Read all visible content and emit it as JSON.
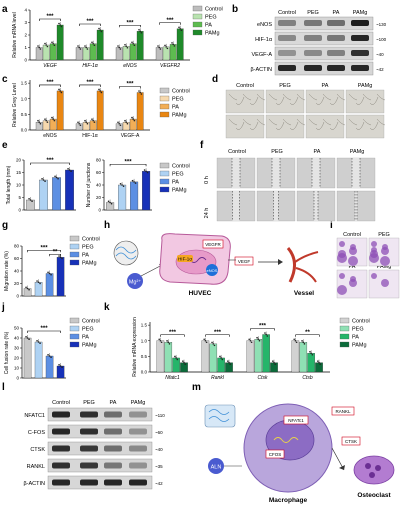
{
  "colors": {
    "control": "#c8c8c8",
    "peg": "#aed2f3",
    "pa": "#5c8fe3",
    "pamg": "#1731b8",
    "a_control": "#bdbdbd",
    "a_peg": "#b9e3b0",
    "a_pa": "#5dbc4f",
    "a_pamg": "#1f8a2a",
    "c_control": "#c8c8c8",
    "c_peg": "#f6d9ae",
    "c_pa": "#f2ae56",
    "c_pamg": "#e98612",
    "k_control": "#d2d2d2",
    "k_peg": "#8fe0b4",
    "k_pa": "#25b56a",
    "k_pamg": "#0b6b3a"
  },
  "legend_groups": [
    "Control",
    "PEG",
    "PA",
    "PAMg"
  ],
  "panels": {
    "a": {
      "letter": "a",
      "ylabel": "Relative mRNA level",
      "yticks": [
        "0",
        "1",
        "2",
        "3",
        "4"
      ],
      "sig": "***",
      "chart_data": {
        "type": "bar",
        "categories": [
          "VEGF",
          "HIF-1α",
          "eNOS",
          "VEGFR2"
        ],
        "ylim": [
          0,
          4
        ],
        "series": [
          {
            "name": "Control",
            "values": [
              1.0,
              1.0,
              1.0,
              1.0
            ]
          },
          {
            "name": "PEG",
            "values": [
              1.2,
              1.0,
              1.1,
              1.05
            ]
          },
          {
            "name": "PA",
            "values": [
              1.3,
              1.3,
              1.3,
              1.25
            ]
          },
          {
            "name": "PAMg",
            "values": [
              2.8,
              2.4,
              2.3,
              2.5
            ]
          }
        ]
      }
    },
    "b": {
      "letter": "b",
      "lanes": [
        "Control",
        "PEG",
        "PA",
        "PAMg"
      ],
      "rows": [
        {
          "label": "eNOS",
          "mw": "~130"
        },
        {
          "label": "HIF-1α",
          "mw": "~100"
        },
        {
          "label": "VEGF-A",
          "mw": "~40"
        },
        {
          "label": "β-ACTIN",
          "mw": "~42"
        }
      ]
    },
    "c": {
      "letter": "c",
      "ylabel": "Relative Grey Level",
      "yticks": [
        "0.0",
        "0.5",
        "1.0",
        "1.5"
      ],
      "sig": "***",
      "chart_data": {
        "type": "bar",
        "categories": [
          "eNOS",
          "HIF-1α",
          "VEGF-A"
        ],
        "ylim": [
          0,
          1.6
        ],
        "series": [
          {
            "name": "Control",
            "values": [
              0.25,
              0.2,
              0.2
            ]
          },
          {
            "name": "PEG",
            "values": [
              0.3,
              0.25,
              0.25
            ]
          },
          {
            "name": "PA",
            "values": [
              0.35,
              0.3,
              0.35
            ]
          },
          {
            "name": "PAMg",
            "values": [
              1.25,
              1.25,
              1.2
            ]
          }
        ]
      }
    },
    "d": {
      "letter": "d",
      "labels": [
        "Control",
        "PEG",
        "PA",
        "PAMg"
      ]
    },
    "e": {
      "letter": "e",
      "sig": "***",
      "left": {
        "ylabel": "Total length (mm)",
        "yticks": [
          "0",
          "5",
          "10",
          "15",
          "20"
        ],
        "ylim": [
          0,
          20
        ],
        "chart_data": {
          "type": "bar",
          "categories": [
            "Control",
            "PEG",
            "PA",
            "PAMg"
          ],
          "values": [
            4,
            12,
            13,
            16
          ]
        }
      },
      "right": {
        "ylabel": "Number of junctions",
        "yticks": [
          "0",
          "20",
          "40",
          "60",
          "80"
        ],
        "ylim": [
          0,
          80
        ],
        "chart_data": {
          "type": "bar",
          "categories": [
            "Control",
            "PEG",
            "PA",
            "PAMg"
          ],
          "values": [
            12,
            40,
            45,
            62
          ]
        }
      }
    },
    "f": {
      "letter": "f",
      "labels": [
        "Control",
        "PEG",
        "PA",
        "PAMg"
      ],
      "rows": [
        "0 h",
        "24 h"
      ]
    },
    "g": {
      "letter": "g",
      "ylabel": "Migration rate (%)",
      "yticks": [
        "0",
        "20",
        "40",
        "60",
        "80"
      ],
      "sig": "***",
      "sig2": "**",
      "chart_data": {
        "type": "bar",
        "categories": [
          "Control",
          "PEG",
          "PA",
          "PAMg"
        ],
        "values": [
          12,
          22,
          36,
          62
        ],
        "ylim": [
          0,
          80
        ]
      }
    },
    "h": {
      "letter": "h",
      "mg": "Mg²⁺",
      "hif": "HIF-1α",
      "vegfr": "VEGFR",
      "vegf": "VEGF",
      "enos": "eNOS",
      "cell": "HUVEC",
      "vessel": "Vessel"
    },
    "i": {
      "letter": "i",
      "labels": [
        "Control",
        "PEG",
        "PA",
        "PAMg"
      ]
    },
    "j": {
      "letter": "j",
      "ylabel": "Cell fusion rate (%)",
      "yticks": [
        "0",
        "10",
        "20",
        "30",
        "40",
        "50"
      ],
      "sig": "***",
      "chart_data": {
        "type": "bar",
        "categories": [
          "Control",
          "PEG",
          "PA",
          "PAMg"
        ],
        "values": [
          40,
          36,
          22,
          12
        ],
        "ylim": [
          0,
          50
        ]
      }
    },
    "k": {
      "letter": "k",
      "ylabel": "Relative mRNA expression",
      "yticks": [
        "0.0",
        "0.5",
        "1.0",
        "1.5"
      ],
      "sig": "***",
      "sig_last": "**",
      "chart_data": {
        "type": "bar",
        "categories": [
          "Nfatc1",
          "Rankl",
          "Ctsk",
          "Ctsb"
        ],
        "ylim": [
          0,
          1.6
        ],
        "series": [
          {
            "name": "Control",
            "values": [
              1.0,
              1.0,
              1.0,
              1.0
            ]
          },
          {
            "name": "PEG",
            "values": [
              0.95,
              0.9,
              1.05,
              0.95
            ]
          },
          {
            "name": "PA",
            "values": [
              0.45,
              0.45,
              1.2,
              0.6
            ]
          },
          {
            "name": "PAMg",
            "values": [
              0.3,
              0.3,
              0.3,
              0.3
            ]
          }
        ]
      }
    },
    "l": {
      "letter": "l",
      "lanes": [
        "Control",
        "PEG",
        "PA",
        "PAMg"
      ],
      "rows": [
        {
          "label": "NFATC1",
          "mw": "~110"
        },
        {
          "label": "C-FOS",
          "mw": "~60"
        },
        {
          "label": "CTSK",
          "mw": "~40"
        },
        {
          "label": "RANKL",
          "mw": "~35"
        },
        {
          "label": "β-ACTIN",
          "mw": "~42"
        }
      ]
    },
    "m": {
      "letter": "m",
      "aln": "ALN",
      "nfatc1": "NFATc1",
      "cfos": "CFOS",
      "rankl": "RANKL",
      "ctsk": "CTSK",
      "macrophage": "Macrophage",
      "osteoclast": "Osteoclast"
    }
  }
}
